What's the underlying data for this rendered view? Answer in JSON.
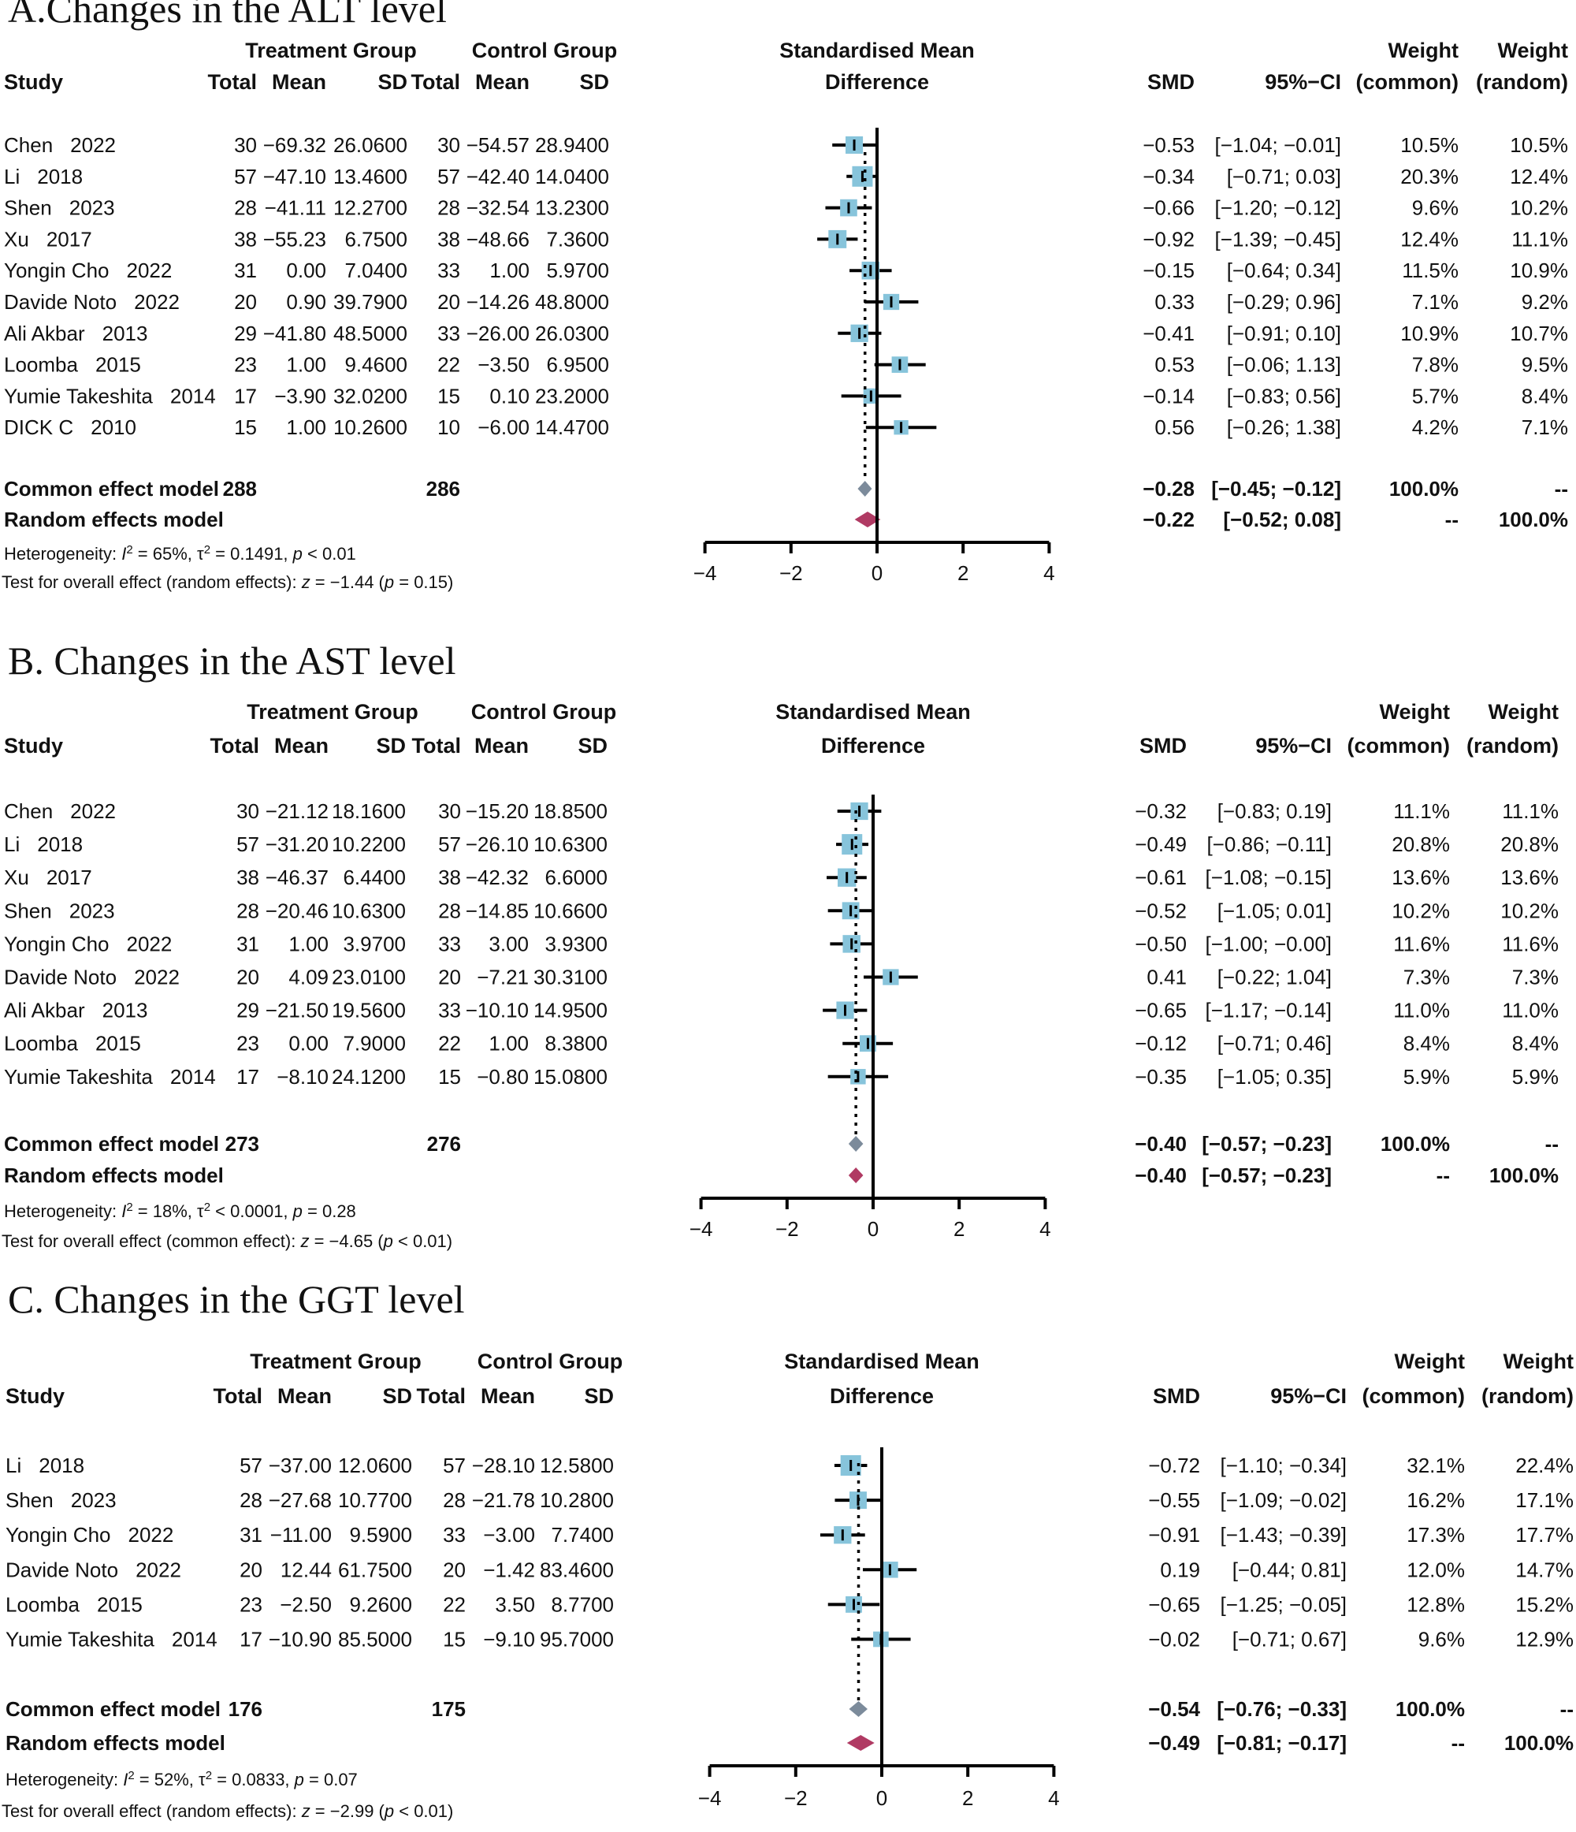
{
  "headers": {
    "study": "Study",
    "treatment_group": "Treatment Group",
    "control_group": "Control Group",
    "total": "Total",
    "mean": "Mean",
    "sd": "SD",
    "smd_title_1": "Standardised Mean",
    "smd_title_2": "Difference",
    "smd": "SMD",
    "ci": "95%−CI",
    "weight": "Weight",
    "common": "(common)",
    "random": "(random)"
  },
  "colors": {
    "square": "#87c4db",
    "common_diamond": "#7c8b9b",
    "random_diamond": "#b03a63"
  },
  "chart_data": [
    {
      "type": "forest",
      "title": "A.Changes in the ALT level",
      "xticks": [
        -4,
        -2,
        0,
        2,
        4
      ],
      "xlim": [
        -4,
        4
      ],
      "studies": [
        {
          "name": "Chen",
          "year": "2022",
          "t_total": "30",
          "t_mean": "−69.32",
          "t_sd": "26.0600",
          "c_total": "30",
          "c_mean": "−54.57",
          "c_sd": "28.9400",
          "smd": -0.53,
          "lo": -1.04,
          "hi": -0.01,
          "smd_text": "−0.53",
          "ci_text": "[−1.04; −0.01]",
          "w_common": "10.5%",
          "w_random": "10.5%"
        },
        {
          "name": "Li",
          "year": "2018",
          "t_total": "57",
          "t_mean": "−47.10",
          "t_sd": "13.4600",
          "c_total": "57",
          "c_mean": "−42.40",
          "c_sd": "14.0400",
          "smd": -0.34,
          "lo": -0.71,
          "hi": 0.03,
          "smd_text": "−0.34",
          "ci_text": "[−0.71; 0.03]",
          "w_common": "20.3%",
          "w_random": "12.4%"
        },
        {
          "name": "Shen",
          "year": "2023",
          "t_total": "28",
          "t_mean": "−41.11",
          "t_sd": "12.2700",
          "c_total": "28",
          "c_mean": "−32.54",
          "c_sd": "13.2300",
          "smd": -0.66,
          "lo": -1.2,
          "hi": -0.12,
          "smd_text": "−0.66",
          "ci_text": "[−1.20; −0.12]",
          "w_common": "9.6%",
          "w_random": "10.2%"
        },
        {
          "name": "Xu",
          "year": "2017",
          "t_total": "38",
          "t_mean": "−55.23",
          "t_sd": "6.7500",
          "c_total": "38",
          "c_mean": "−48.66",
          "c_sd": "7.3600",
          "smd": -0.92,
          "lo": -1.39,
          "hi": -0.45,
          "smd_text": "−0.92",
          "ci_text": "[−1.39; −0.45]",
          "w_common": "12.4%",
          "w_random": "11.1%"
        },
        {
          "name": "Yongin Cho",
          "year": "2022",
          "t_total": "31",
          "t_mean": "0.00",
          "t_sd": "7.0400",
          "c_total": "33",
          "c_mean": "1.00",
          "c_sd": "5.9700",
          "smd": -0.15,
          "lo": -0.64,
          "hi": 0.34,
          "smd_text": "−0.15",
          "ci_text": "[−0.64; 0.34]",
          "w_common": "11.5%",
          "w_random": "10.9%"
        },
        {
          "name": "Davide Noto",
          "year": "2022",
          "t_total": "20",
          "t_mean": "0.90",
          "t_sd": "39.7900",
          "c_total": "20",
          "c_mean": "−14.26",
          "c_sd": "48.8000",
          "smd": 0.33,
          "lo": -0.29,
          "hi": 0.96,
          "smd_text": "0.33",
          "ci_text": "[−0.29; 0.96]",
          "w_common": "7.1%",
          "w_random": "9.2%"
        },
        {
          "name": "Ali Akbar",
          "year": "2013",
          "t_total": "29",
          "t_mean": "−41.80",
          "t_sd": "48.5000",
          "c_total": "33",
          "c_mean": "−26.00",
          "c_sd": "26.0300",
          "smd": -0.41,
          "lo": -0.91,
          "hi": 0.1,
          "smd_text": "−0.41",
          "ci_text": "[−0.91; 0.10]",
          "w_common": "10.9%",
          "w_random": "10.7%"
        },
        {
          "name": "Loomba",
          "year": "2015",
          "t_total": "23",
          "t_mean": "1.00",
          "t_sd": "9.4600",
          "c_total": "22",
          "c_mean": "−3.50",
          "c_sd": "6.9500",
          "smd": 0.53,
          "lo": -0.06,
          "hi": 1.13,
          "smd_text": "0.53",
          "ci_text": "[−0.06; 1.13]",
          "w_common": "7.8%",
          "w_random": "9.5%"
        },
        {
          "name": "Yumie Takeshita",
          "year": "2014",
          "t_total": "17",
          "t_mean": "−3.90",
          "t_sd": "32.0200",
          "c_total": "15",
          "c_mean": "0.10",
          "c_sd": "23.2000",
          "smd": -0.14,
          "lo": -0.83,
          "hi": 0.56,
          "smd_text": "−0.14",
          "ci_text": "[−0.83; 0.56]",
          "w_common": "5.7%",
          "w_random": "8.4%"
        },
        {
          "name": "DICK C",
          "year": "2010",
          "t_total": "15",
          "t_mean": "1.00",
          "t_sd": "10.2600",
          "c_total": "10",
          "c_mean": "−6.00",
          "c_sd": "14.4700",
          "smd": 0.56,
          "lo": -0.26,
          "hi": 1.38,
          "smd_text": "0.56",
          "ci_text": "[−0.26; 1.38]",
          "w_common": "4.2%",
          "w_random": "7.1%"
        }
      ],
      "common": {
        "label": "Common effect model",
        "t_total": "288",
        "c_total": "286",
        "smd": -0.28,
        "lo": -0.45,
        "hi": -0.12,
        "smd_text": "−0.28",
        "ci_text": "[−0.45; −0.12]",
        "w_common": "100.0%",
        "w_random": "--"
      },
      "random": {
        "label": "Random effects model",
        "smd": -0.22,
        "lo": -0.52,
        "hi": 0.08,
        "smd_text": "−0.22",
        "ci_text": "[−0.52; 0.08]",
        "w_common": "--",
        "w_random": "100.0%"
      },
      "heterogeneity": "Heterogeneity: I² = 65%, τ² = 0.1491, p < 0.01",
      "overall": "Test for overall effect (random effects): z = −1.44 (p = 0.15)"
    },
    {
      "type": "forest",
      "title": "B. Changes in the AST level",
      "xticks": [
        -4,
        -2,
        0,
        2,
        4
      ],
      "xlim": [
        -4,
        4
      ],
      "studies": [
        {
          "name": "Chen",
          "year": "2022",
          "t_total": "30",
          "t_mean": "−21.12",
          "t_sd": "18.1600",
          "c_total": "30",
          "c_mean": "−15.20",
          "c_sd": "18.8500",
          "smd": -0.32,
          "lo": -0.83,
          "hi": 0.19,
          "smd_text": "−0.32",
          "ci_text": "[−0.83; 0.19]",
          "w_common": "11.1%",
          "w_random": "11.1%"
        },
        {
          "name": "Li",
          "year": "2018",
          "t_total": "57",
          "t_mean": "−31.20",
          "t_sd": "10.2200",
          "c_total": "57",
          "c_mean": "−26.10",
          "c_sd": "10.6300",
          "smd": -0.49,
          "lo": -0.86,
          "hi": -0.11,
          "smd_text": "−0.49",
          "ci_text": "[−0.86; −0.11]",
          "w_common": "20.8%",
          "w_random": "20.8%"
        },
        {
          "name": "Xu",
          "year": "2017",
          "t_total": "38",
          "t_mean": "−46.37",
          "t_sd": "6.4400",
          "c_total": "38",
          "c_mean": "−42.32",
          "c_sd": "6.6000",
          "smd": -0.61,
          "lo": -1.08,
          "hi": -0.15,
          "smd_text": "−0.61",
          "ci_text": "[−1.08; −0.15]",
          "w_common": "13.6%",
          "w_random": "13.6%"
        },
        {
          "name": "Shen",
          "year": "2023",
          "t_total": "28",
          "t_mean": "−20.46",
          "t_sd": "10.6300",
          "c_total": "28",
          "c_mean": "−14.85",
          "c_sd": "10.6600",
          "smd": -0.52,
          "lo": -1.05,
          "hi": 0.01,
          "smd_text": "−0.52",
          "ci_text": "[−1.05; 0.01]",
          "w_common": "10.2%",
          "w_random": "10.2%"
        },
        {
          "name": "Yongin Cho",
          "year": "2022",
          "t_total": "31",
          "t_mean": "1.00",
          "t_sd": "3.9700",
          "c_total": "33",
          "c_mean": "3.00",
          "c_sd": "3.9300",
          "smd": -0.5,
          "lo": -1.0,
          "hi": -0.0,
          "smd_text": "−0.50",
          "ci_text": "[−1.00; −0.00]",
          "w_common": "11.6%",
          "w_random": "11.6%"
        },
        {
          "name": "Davide Noto",
          "year": "2022",
          "t_total": "20",
          "t_mean": "4.09",
          "t_sd": "23.0100",
          "c_total": "20",
          "c_mean": "−7.21",
          "c_sd": "30.3100",
          "smd": 0.41,
          "lo": -0.22,
          "hi": 1.04,
          "smd_text": "0.41",
          "ci_text": "[−0.22; 1.04]",
          "w_common": "7.3%",
          "w_random": "7.3%"
        },
        {
          "name": "Ali Akbar",
          "year": "2013",
          "t_total": "29",
          "t_mean": "−21.50",
          "t_sd": "19.5600",
          "c_total": "33",
          "c_mean": "−10.10",
          "c_sd": "14.9500",
          "smd": -0.65,
          "lo": -1.17,
          "hi": -0.14,
          "smd_text": "−0.65",
          "ci_text": "[−1.17; −0.14]",
          "w_common": "11.0%",
          "w_random": "11.0%"
        },
        {
          "name": "Loomba",
          "year": "2015",
          "t_total": "23",
          "t_mean": "0.00",
          "t_sd": "7.9000",
          "c_total": "22",
          "c_mean": "1.00",
          "c_sd": "8.3800",
          "smd": -0.12,
          "lo": -0.71,
          "hi": 0.46,
          "smd_text": "−0.12",
          "ci_text": "[−0.71; 0.46]",
          "w_common": "8.4%",
          "w_random": "8.4%"
        },
        {
          "name": "Yumie Takeshita",
          "year": "2014",
          "t_total": "17",
          "t_mean": "−8.10",
          "t_sd": "24.1200",
          "c_total": "15",
          "c_mean": "−0.80",
          "c_sd": "15.0800",
          "smd": -0.35,
          "lo": -1.05,
          "hi": 0.35,
          "smd_text": "−0.35",
          "ci_text": "[−1.05; 0.35]",
          "w_common": "5.9%",
          "w_random": "5.9%"
        }
      ],
      "common": {
        "label": "Common effect model",
        "t_total": "273",
        "c_total": "276",
        "smd": -0.4,
        "lo": -0.57,
        "hi": -0.23,
        "smd_text": "−0.40",
        "ci_text": "[−0.57; −0.23]",
        "w_common": "100.0%",
        "w_random": "--"
      },
      "random": {
        "label": "Random effects model",
        "smd": -0.4,
        "lo": -0.57,
        "hi": -0.23,
        "smd_text": "−0.40",
        "ci_text": "[−0.57; −0.23]",
        "w_common": "--",
        "w_random": "100.0%"
      },
      "heterogeneity": "Heterogeneity: I² = 18%, τ² < 0.0001, p = 0.28",
      "overall": "Test for overall effect (common effect): z = −4.65 (p < 0.01)"
    },
    {
      "type": "forest",
      "title": "C. Changes in the GGT level",
      "xticks": [
        -4,
        -2,
        0,
        2,
        4
      ],
      "xlim": [
        -4,
        4
      ],
      "studies": [
        {
          "name": "Li",
          "year": "2018",
          "t_total": "57",
          "t_mean": "−37.00",
          "t_sd": "12.0600",
          "c_total": "57",
          "c_mean": "−28.10",
          "c_sd": "12.5800",
          "smd": -0.72,
          "lo": -1.1,
          "hi": -0.34,
          "smd_text": "−0.72",
          "ci_text": "[−1.10; −0.34]",
          "w_common": "32.1%",
          "w_random": "22.4%"
        },
        {
          "name": "Shen",
          "year": "2023",
          "t_total": "28",
          "t_mean": "−27.68",
          "t_sd": "10.7700",
          "c_total": "28",
          "c_mean": "−21.78",
          "c_sd": "10.2800",
          "smd": -0.55,
          "lo": -1.09,
          "hi": -0.02,
          "smd_text": "−0.55",
          "ci_text": "[−1.09; −0.02]",
          "w_common": "16.2%",
          "w_random": "17.1%"
        },
        {
          "name": "Yongin Cho",
          "year": "2022",
          "t_total": "31",
          "t_mean": "−11.00",
          "t_sd": "9.5900",
          "c_total": "33",
          "c_mean": "−3.00",
          "c_sd": "7.7400",
          "smd": -0.91,
          "lo": -1.43,
          "hi": -0.39,
          "smd_text": "−0.91",
          "ci_text": "[−1.43; −0.39]",
          "w_common": "17.3%",
          "w_random": "17.7%"
        },
        {
          "name": "Davide Noto",
          "year": "2022",
          "t_total": "20",
          "t_mean": "12.44",
          "t_sd": "61.7500",
          "c_total": "20",
          "c_mean": "−1.42",
          "c_sd": "83.4600",
          "smd": 0.19,
          "lo": -0.44,
          "hi": 0.81,
          "smd_text": "0.19",
          "ci_text": "[−0.44; 0.81]",
          "w_common": "12.0%",
          "w_random": "14.7%"
        },
        {
          "name": "Loomba",
          "year": "2015",
          "t_total": "23",
          "t_mean": "−2.50",
          "t_sd": "9.2600",
          "c_total": "22",
          "c_mean": "3.50",
          "c_sd": "8.7700",
          "smd": -0.65,
          "lo": -1.25,
          "hi": -0.05,
          "smd_text": "−0.65",
          "ci_text": "[−1.25; −0.05]",
          "w_common": "12.8%",
          "w_random": "15.2%"
        },
        {
          "name": "Yumie Takeshita",
          "year": "2014",
          "t_total": "17",
          "t_mean": "−10.90",
          "t_sd": "85.5000",
          "c_total": "15",
          "c_mean": "−9.10",
          "c_sd": "95.7000",
          "smd": -0.02,
          "lo": -0.71,
          "hi": 0.67,
          "smd_text": "−0.02",
          "ci_text": "[−0.71; 0.67]",
          "w_common": "9.6%",
          "w_random": "12.9%"
        }
      ],
      "common": {
        "label": "Common effect model",
        "t_total": "176",
        "c_total": "175",
        "smd": -0.54,
        "lo": -0.76,
        "hi": -0.33,
        "smd_text": "−0.54",
        "ci_text": "[−0.76; −0.33]",
        "w_common": "100.0%",
        "w_random": "--"
      },
      "random": {
        "label": "Random effects model",
        "smd": -0.49,
        "lo": -0.81,
        "hi": -0.17,
        "smd_text": "−0.49",
        "ci_text": "[−0.81; −0.17]",
        "w_common": "--",
        "w_random": "100.0%"
      },
      "heterogeneity": "Heterogeneity: I² = 52%, τ² = 0.0833, p = 0.07",
      "overall": "Test for overall effect (random effects): z = −2.99 (p < 0.01)"
    }
  ]
}
